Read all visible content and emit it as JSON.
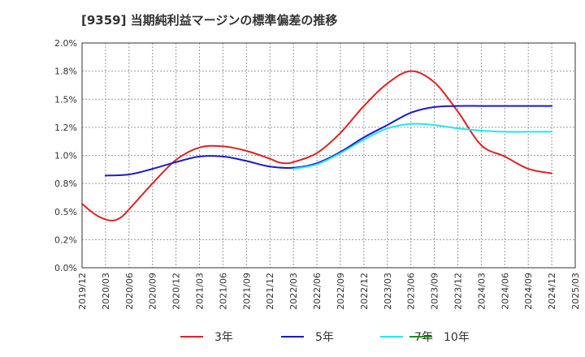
{
  "chart_data": {
    "type": "line",
    "title": "[9359]  当期純利益マージンの標準偏差の推移",
    "xlabel": "",
    "ylabel": "",
    "ylim": [
      0,
      2.0
    ],
    "y_ticks": [
      "0.0%",
      "0.2%",
      "0.5%",
      "0.8%",
      "1.0%",
      "1.2%",
      "1.5%",
      "1.8%",
      "2.0%"
    ],
    "x_ticks": [
      "2019/12",
      "2020/03",
      "2020/06",
      "2020/09",
      "2020/12",
      "2021/03",
      "2021/06",
      "2021/09",
      "2021/12",
      "2022/03",
      "2022/06",
      "2022/09",
      "2022/12",
      "2023/03",
      "2023/06",
      "2023/09",
      "2023/12",
      "2024/03",
      "2024/06",
      "2024/09",
      "2024/12",
      "2025/03"
    ],
    "grid": true,
    "legend_position": "bottom",
    "series": [
      {
        "name": "3年",
        "color": "#dd2222",
        "x": [
          "2019/12",
          "2020/01",
          "2020/02",
          "2020/03",
          "2020/04",
          "2020/05",
          "2020/06",
          "2020/09",
          "2020/12",
          "2021/03",
          "2021/06",
          "2021/09",
          "2021/12",
          "2022/01",
          "2022/02",
          "2022/03",
          "2022/06",
          "2022/09",
          "2022/12",
          "2023/03",
          "2023/06",
          "2023/09",
          "2023/12",
          "2024/03",
          "2024/06",
          "2024/09",
          "2024/12"
        ],
        "values": [
          0.57,
          0.51,
          0.46,
          0.43,
          0.42,
          0.45,
          0.52,
          0.75,
          0.96,
          1.07,
          1.08,
          1.04,
          0.97,
          0.94,
          0.93,
          0.94,
          1.02,
          1.2,
          1.44,
          1.64,
          1.75,
          1.65,
          1.39,
          1.09,
          0.99,
          0.88,
          0.84
        ]
      },
      {
        "name": "5年",
        "color": "#1a1acc",
        "x": [
          "2020/03",
          "2020/06",
          "2020/09",
          "2020/12",
          "2021/03",
          "2021/06",
          "2021/09",
          "2021/12",
          "2022/03",
          "2022/06",
          "2022/09",
          "2022/12",
          "2023/03",
          "2023/06",
          "2023/09",
          "2023/12",
          "2024/03",
          "2024/06",
          "2024/09",
          "2024/12"
        ],
        "values": [
          0.82,
          0.83,
          0.88,
          0.94,
          0.99,
          0.99,
          0.95,
          0.9,
          0.89,
          0.93,
          1.03,
          1.16,
          1.27,
          1.38,
          1.43,
          1.44,
          1.44,
          1.44,
          1.44,
          1.44
        ]
      },
      {
        "name": "7年",
        "color": "#22e6f0",
        "x": [
          "2022/03",
          "2022/06",
          "2022/09",
          "2022/12",
          "2023/03",
          "2023/06",
          "2023/09",
          "2023/12",
          "2024/03",
          "2024/06",
          "2024/09",
          "2024/12"
        ],
        "values": [
          0.88,
          0.92,
          1.02,
          1.14,
          1.24,
          1.28,
          1.27,
          1.24,
          1.22,
          1.21,
          1.21,
          1.21
        ]
      },
      {
        "name": "10年",
        "color": "#228b22",
        "x": [],
        "values": []
      }
    ]
  }
}
